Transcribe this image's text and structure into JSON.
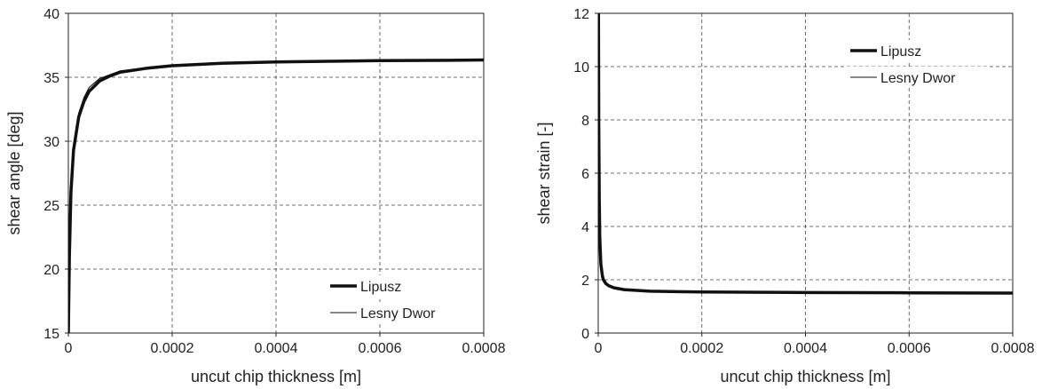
{
  "chart_data": [
    {
      "type": "line",
      "title": "",
      "xlabel": "uncut chip thickness [m]",
      "ylabel": "shear angle [deg]",
      "xlim": [
        0,
        0.0008
      ],
      "ylim": [
        15,
        40
      ],
      "xticks": [
        0,
        0.0002,
        0.0004,
        0.0006,
        0.0008
      ],
      "xtick_labels": [
        "0",
        "0.0002",
        "0.0004",
        "0.0006",
        "0.0008"
      ],
      "yticks": [
        15,
        20,
        25,
        30,
        35,
        40
      ],
      "ytick_labels": [
        "15",
        "20",
        "25",
        "30",
        "35",
        "40"
      ],
      "grid": true,
      "legend": "bottom-right",
      "series": [
        {
          "name": "Lipusz",
          "style": "thick",
          "x": [
            0,
            2e-06,
            5e-06,
            1e-05,
            2e-05,
            3e-05,
            4e-05,
            6e-05,
            8e-05,
            0.0001,
            0.00015,
            0.0002,
            0.0003,
            0.0004,
            0.0005,
            0.0006,
            0.0007,
            0.0008
          ],
          "y": [
            15,
            21,
            26,
            29.3,
            31.9,
            33.1,
            33.9,
            34.7,
            35.1,
            35.4,
            35.7,
            35.9,
            36.1,
            36.2,
            36.25,
            36.3,
            36.32,
            36.35
          ]
        },
        {
          "name": "Lesny Dwor",
          "style": "thin",
          "x": [
            0,
            2e-06,
            5e-06,
            1e-05,
            2e-05,
            3e-05,
            4e-05,
            6e-05,
            8e-05,
            0.0001,
            0.00015,
            0.0002,
            0.0003,
            0.0004,
            0.0005,
            0.0006,
            0.0007,
            0.0008
          ],
          "y": [
            15,
            21.2,
            26.3,
            29.6,
            32.2,
            33.4,
            34.2,
            34.9,
            35.2,
            35.5,
            35.75,
            35.9,
            36.1,
            36.2,
            36.25,
            36.3,
            36.32,
            36.35
          ]
        }
      ]
    },
    {
      "type": "line",
      "title": "",
      "xlabel": "uncut chip thickness [m]",
      "ylabel": "shear strain [-]",
      "xlim": [
        0,
        0.0008
      ],
      "ylim": [
        0,
        12
      ],
      "xticks": [
        0,
        0.0002,
        0.0004,
        0.0006,
        0.0008
      ],
      "xtick_labels": [
        "0",
        "0.0002",
        "0.0004",
        "0.0006",
        "0.0008"
      ],
      "yticks": [
        0,
        2,
        4,
        6,
        8,
        10,
        12
      ],
      "ytick_labels": [
        "0",
        "2",
        "4",
        "6",
        "8",
        "10",
        "12"
      ],
      "grid": true,
      "legend": "top-right",
      "series": [
        {
          "name": "Lipusz",
          "style": "thick",
          "x": [
            5e-07,
            1e-06,
            2e-06,
            3e-06,
            5e-06,
            8e-06,
            1e-05,
            1.5e-05,
            2e-05,
            3e-05,
            5e-05,
            0.0001,
            0.0002,
            0.0004,
            0.0006,
            0.0008
          ],
          "y": [
            12,
            8,
            5,
            3.6,
            2.6,
            2.15,
            2.0,
            1.85,
            1.78,
            1.7,
            1.63,
            1.57,
            1.54,
            1.52,
            1.51,
            1.5
          ]
        },
        {
          "name": "Lesny Dwor",
          "style": "thin",
          "x": [
            5e-07,
            1e-06,
            2e-06,
            3e-06,
            5e-06,
            8e-06,
            1e-05,
            1.5e-05,
            2e-05,
            3e-05,
            5e-05,
            0.0001,
            0.0002,
            0.0004,
            0.0006,
            0.0008
          ],
          "y": [
            12,
            7.8,
            4.9,
            3.5,
            2.55,
            2.1,
            1.97,
            1.83,
            1.76,
            1.68,
            1.62,
            1.56,
            1.53,
            1.51,
            1.5,
            1.5
          ]
        }
      ]
    }
  ]
}
